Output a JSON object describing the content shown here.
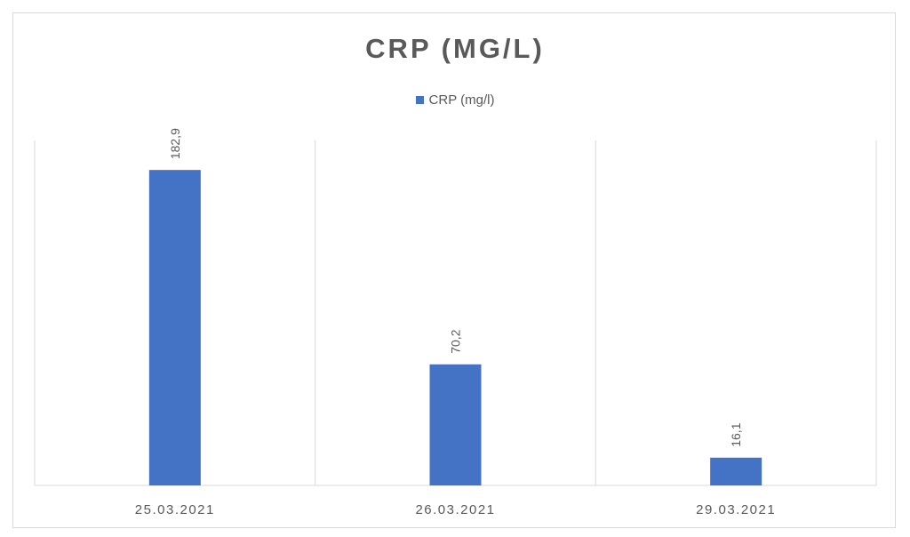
{
  "chart_data": {
    "type": "bar",
    "title": "CRP (MG/L)",
    "categories": [
      "25.03.2021",
      "26.03.2021",
      "29.03.2021"
    ],
    "series": [
      {
        "name": "CRP (mg/l)",
        "values": [
          182.9,
          70.2,
          16.1
        ],
        "labels": [
          "182,9",
          "70,2",
          "16,1"
        ]
      }
    ],
    "ylim": [
      0,
      200
    ],
    "grid": "vertical category separators",
    "legend": "top",
    "colors": {
      "bar": "#4472c4",
      "text": "#595959",
      "grid": "#d9d9d9"
    }
  }
}
